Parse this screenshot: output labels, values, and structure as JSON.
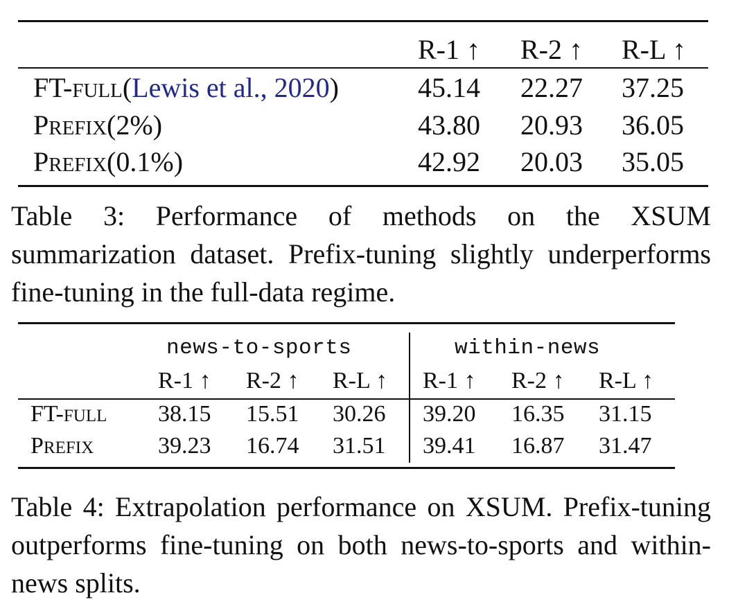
{
  "table3": {
    "headers": [
      "R-1 ↑",
      "R-2 ↑",
      "R-L ↑"
    ],
    "rows": [
      {
        "label_main": "FT-",
        "label_sc": "FULL",
        "label_open": "(",
        "label_cite": "Lewis et al., 2020",
        "label_close": ")",
        "values": [
          "45.14",
          "22.27",
          "37.25"
        ]
      },
      {
        "label_p": "P",
        "label_sc": "REFIX",
        "label_suffix": "(2%)",
        "values": [
          "43.80",
          "20.93",
          "36.05"
        ]
      },
      {
        "label_p": "P",
        "label_sc": "REFIX",
        "label_suffix": "(0.1%)",
        "values": [
          "42.92",
          "20.03",
          "35.05"
        ]
      }
    ],
    "caption": "Table 3:  Performance of methods on the XSUM summarization dataset.  Prefix-tuning slightly underperforms fine-tuning in the full-data regime."
  },
  "table4": {
    "groups": [
      "news-to-sports",
      "within-news"
    ],
    "headers": [
      "R-1 ↑",
      "R-2 ↑",
      "R-L ↑",
      "R-1 ↑",
      "R-2 ↑",
      "R-L ↑"
    ],
    "rows": [
      {
        "label_main": "FT-",
        "label_sc": "FULL",
        "values": [
          "38.15",
          "15.51",
          "30.26",
          "39.20",
          "16.35",
          "31.15"
        ]
      },
      {
        "label_p": "P",
        "label_sc": "REFIX",
        "values": [
          "39.23",
          "16.74",
          "31.51",
          "39.41",
          "16.87",
          "31.47"
        ]
      }
    ],
    "caption": "Table 4:  Extrapolation performance on XSUM. Prefix-tuning outperforms fine-tuning on both news-to-sports and within-news splits."
  },
  "colors": {
    "citation": "#1f2a8c",
    "text": "#111111"
  }
}
